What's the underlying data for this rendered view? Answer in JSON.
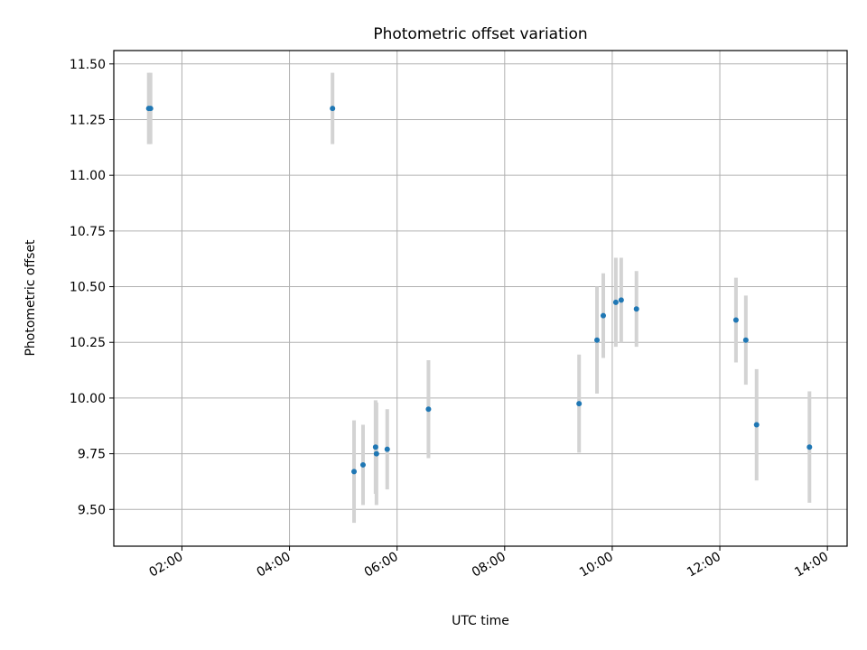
{
  "chart_data": {
    "type": "scatter",
    "title": "Photometric offset variation",
    "xlabel": "UTC time",
    "ylabel": "Photometric offset",
    "x_axis_kind": "time",
    "xlim": [
      "00:44",
      "14:22"
    ],
    "ylim": [
      9.335,
      11.56
    ],
    "x_ticks": [
      "02:00",
      "04:00",
      "06:00",
      "08:00",
      "10:00",
      "12:00",
      "14:00"
    ],
    "y_ticks": [
      9.5,
      9.75,
      10.0,
      10.25,
      10.5,
      10.75,
      11.0,
      11.25,
      11.5
    ],
    "y_tick_labels": [
      "9.50",
      "9.75",
      "10.00",
      "10.25",
      "10.50",
      "10.75",
      "11.00",
      "11.25",
      "11.50"
    ],
    "grid": true,
    "marker_color": "#1f77b4",
    "errorbar_color": "#d3d3d3",
    "points": [
      {
        "t": "01:23",
        "y": 11.3,
        "err": 0.16
      },
      {
        "t": "01:25",
        "y": 11.3,
        "err": 0.16
      },
      {
        "t": "04:48",
        "y": 11.3,
        "err": 0.16
      },
      {
        "t": "05:12",
        "y": 9.67,
        "err": 0.23
      },
      {
        "t": "05:22",
        "y": 9.7,
        "err": 0.18
      },
      {
        "t": "05:36",
        "y": 9.78,
        "err": 0.21
      },
      {
        "t": "05:37",
        "y": 9.75,
        "err": 0.23
      },
      {
        "t": "05:49",
        "y": 9.77,
        "err": 0.18
      },
      {
        "t": "06:35",
        "y": 9.95,
        "err": 0.22
      },
      {
        "t": "09:23",
        "y": 9.975,
        "err": 0.22
      },
      {
        "t": "09:43",
        "y": 10.26,
        "err": 0.24
      },
      {
        "t": "09:50",
        "y": 10.37,
        "err": 0.19
      },
      {
        "t": "10:04",
        "y": 10.43,
        "err": 0.2
      },
      {
        "t": "10:10",
        "y": 10.44,
        "err": 0.19
      },
      {
        "t": "10:27",
        "y": 10.4,
        "err": 0.17
      },
      {
        "t": "12:18",
        "y": 10.35,
        "err": 0.19
      },
      {
        "t": "12:29",
        "y": 10.26,
        "err": 0.2
      },
      {
        "t": "12:41",
        "y": 9.88,
        "err": 0.25
      },
      {
        "t": "13:40",
        "y": 9.78,
        "err": 0.25
      }
    ]
  }
}
